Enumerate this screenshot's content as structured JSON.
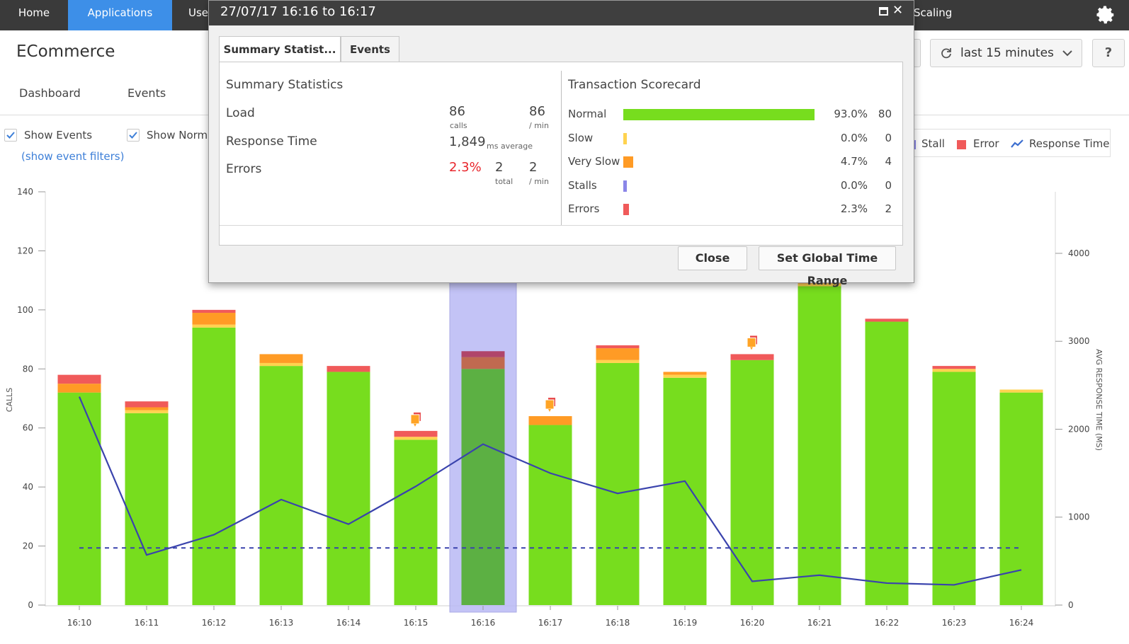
{
  "nav": {
    "home": "Home",
    "applications": "Applications",
    "users_partial": "Use",
    "scaling_partial": "Scaling"
  },
  "app": {
    "title": "ECommerce",
    "tabs": [
      "Dashboard",
      "Events"
    ]
  },
  "toolbar": {
    "time_range": "last 15 minutes",
    "help": "?"
  },
  "options": {
    "show_events": "Show Events",
    "show_normal_partial": "Show Norma",
    "event_filters": "(show event filters)"
  },
  "legend": {
    "stall": "Stall",
    "error": "Error",
    "response_time": "Response Time"
  },
  "colors": {
    "normal": "#77dd1e",
    "slow": "#ffd34f",
    "very_slow": "#ff9b25",
    "stall": "#8a86e8",
    "error": "#f05a5a",
    "line": "#3a43ad",
    "accent": "#3d8fe8",
    "selection": "#b9b9f5",
    "selected_bar": "#5cb043"
  },
  "modal": {
    "title": "27/07/17 16:16 to 16:17",
    "tabs": [
      "Summary Statist...",
      "Events"
    ],
    "summary": {
      "title": "Summary Statistics",
      "load_label": "Load",
      "load_calls": "86",
      "load_calls_unit": "calls",
      "load_per_min": "86",
      "load_per_min_unit": "/ min",
      "response_label": "Response Time",
      "response_value": "1,849",
      "response_unit": "ms average",
      "errors_label": "Errors",
      "errors_pct": "2.3%",
      "errors_total": "2",
      "errors_total_unit": "total",
      "errors_per_min": "2",
      "errors_per_min_unit": "/ min"
    },
    "scorecard": {
      "title": "Transaction Scorecard",
      "rows": [
        {
          "label": "Normal",
          "pct": "93.0%",
          "count": "80",
          "share": 0.93,
          "color": "#77dd1e"
        },
        {
          "label": "Slow",
          "pct": "0.0%",
          "count": "0",
          "share": 0.0,
          "color": "#ffd34f"
        },
        {
          "label": "Very Slow",
          "pct": "4.7%",
          "count": "4",
          "share": 0.047,
          "color": "#ff9b25"
        },
        {
          "label": "Stalls",
          "pct": "0.0%",
          "count": "0",
          "share": 0.0,
          "color": "#8a86e8"
        },
        {
          "label": "Errors",
          "pct": "2.3%",
          "count": "2",
          "share": 0.023,
          "color": "#f05a5a"
        }
      ]
    },
    "buttons": {
      "close": "Close",
      "set_global": "Set Global Time Range"
    }
  },
  "chart_data": {
    "type": "bar",
    "categories": [
      "16:10",
      "16:11",
      "16:12",
      "16:13",
      "16:14",
      "16:15",
      "16:16",
      "16:17",
      "16:18",
      "16:19",
      "16:20",
      "16:21",
      "16:22",
      "16:23",
      "16:24"
    ],
    "ylabel": "CALLS",
    "y2label": "AVG RESPONSE TIME (MS)",
    "ylim": [
      0,
      140
    ],
    "y2lim": [
      0,
      4700
    ],
    "yticks": [
      0,
      20,
      40,
      60,
      80,
      100,
      120,
      140
    ],
    "y2ticks": [
      0,
      1000,
      2000,
      3000,
      4000
    ],
    "selected_category": "16:16",
    "series": [
      {
        "name": "Normal",
        "values": [
          72,
          65,
          94,
          81,
          79,
          56,
          80,
          61,
          82,
          77,
          83,
          108,
          96,
          79,
          72
        ]
      },
      {
        "name": "Slow",
        "values": [
          0,
          1,
          1,
          1,
          0,
          1,
          0,
          0,
          1,
          1,
          0,
          1,
          0,
          1,
          1
        ]
      },
      {
        "name": "Very Slow",
        "values": [
          3,
          1,
          4,
          3,
          0,
          0,
          4,
          3,
          4,
          1,
          0,
          0,
          0,
          0,
          0
        ]
      },
      {
        "name": "Error",
        "values": [
          3,
          2,
          1,
          0,
          2,
          2,
          2,
          0,
          1,
          0,
          2,
          2,
          1,
          1,
          0
        ]
      }
    ],
    "response_time": [
      2370,
      570,
      800,
      1200,
      920,
      1350,
      1830,
      1500,
      1270,
      1410,
      270,
      340,
      250,
      230,
      400
    ],
    "baseline_response_time": 650,
    "event_markers": [
      "16:15",
      "16:17",
      "16:20"
    ]
  }
}
